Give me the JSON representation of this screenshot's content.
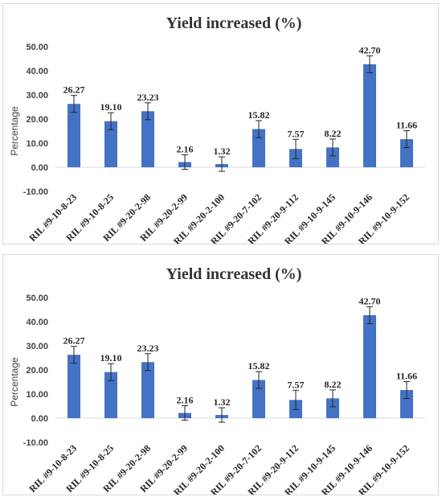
{
  "chart_data": [
    {
      "type": "bar",
      "title": "Yield increased (%)",
      "ylabel": "Percentage",
      "xlabel": "",
      "ylim": [
        -10,
        50
      ],
      "yticks": [
        "-10.00",
        "0.00",
        "10.00",
        "20.00",
        "30.00",
        "40.00",
        "50.00"
      ],
      "grid": false,
      "legend": "none",
      "bar_color": "#4472c4",
      "categories": [
        "RIL #9-10-8-23",
        "RIL #9-10-8-25",
        "RIL #9-20-2-98",
        "RIL #9-20-2-99",
        "RIL #9-20-2-100",
        "RIL #9-20-7-102",
        "RIL #9-20-9-112",
        "RIL #9-10-9-145",
        "RIL #9-10-9-146",
        "RIL #9-10-9-152"
      ],
      "values": [
        26.27,
        19.1,
        23.23,
        2.16,
        1.32,
        15.82,
        7.57,
        8.22,
        42.7,
        11.66
      ],
      "value_labels": [
        "26.27",
        "19.10",
        "23.23",
        "2.16",
        "1.32",
        "15.82",
        "7.57",
        "8.22",
        "42.70",
        "11.66"
      ],
      "error": [
        3.5,
        3.5,
        3.5,
        3.0,
        3.0,
        3.5,
        4.0,
        3.5,
        3.5,
        3.5
      ]
    },
    {
      "type": "bar",
      "title": "Yield increased (%)",
      "ylabel": "Percentage",
      "xlabel": "",
      "ylim": [
        -10,
        50
      ],
      "yticks": [
        "-10.00",
        "0.00",
        "10.00",
        "20.00",
        "30.00",
        "40.00",
        "50.00"
      ],
      "grid": false,
      "legend": "none",
      "bar_color": "#4472c4",
      "categories": [
        "RIL #9-10-8-23",
        "RIL #9-10-8-25",
        "RIL #9-20-2-98",
        "RIL #9-20-2-99",
        "RIL #9-20-2-100",
        "RIL #9-20-7-102",
        "RIL #9-20-9-112",
        "RIL #9-10-9-145",
        "RIL #9-10-9-146",
        "RIL #9-10-9-152"
      ],
      "values": [
        26.27,
        19.1,
        23.23,
        2.16,
        1.32,
        15.82,
        7.57,
        8.22,
        42.7,
        11.66
      ],
      "value_labels": [
        "26.27",
        "19.10",
        "23.23",
        "2.16",
        "1.32",
        "15.82",
        "7.57",
        "8.22",
        "42.70",
        "11.66"
      ],
      "error": [
        3.5,
        3.5,
        3.5,
        3.0,
        3.0,
        3.5,
        4.0,
        3.5,
        3.5,
        3.5
      ]
    }
  ]
}
